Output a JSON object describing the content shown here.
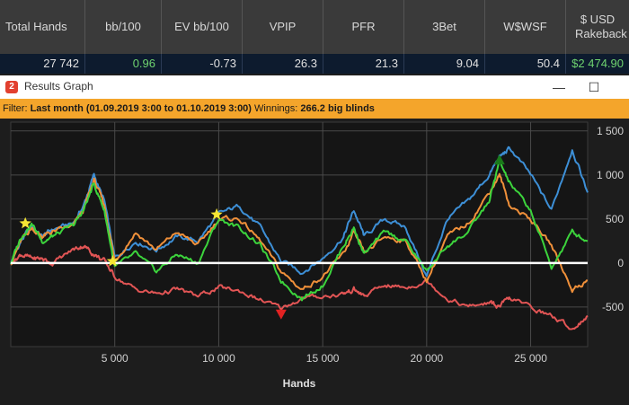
{
  "stats": {
    "headers": [
      "Total Hands",
      "bb/100",
      "EV bb/100",
      "VPIP",
      "PFR",
      "3Bet",
      "W$WSF",
      "$ USD Rakeback"
    ],
    "values": [
      "27 742",
      "0.96",
      "-0.73",
      "26.3",
      "21.3",
      "9.04",
      "50.4",
      "$2 474.90"
    ],
    "value_colors": [
      "#e0e0e0",
      "#6fd36f",
      "#e0e0e0",
      "#e0e0e0",
      "#e0e0e0",
      "#e0e0e0",
      "#e0e0e0",
      "#6fd36f"
    ]
  },
  "window": {
    "title": "Results Graph",
    "app_icon": "2",
    "minimize_icon": "—",
    "maximize_icon": "☐"
  },
  "filter": {
    "label": "Filter:",
    "value": "Last month (01.09.2019 3:00 to 01.10.2019 3:00)",
    "winnings_label": "Winnings:",
    "winnings_value": "266.2 big blinds"
  },
  "chart_data": {
    "type": "line",
    "xlabel": "Hands",
    "ylabel": "",
    "xlim": [
      0,
      27742
    ],
    "ylim": [
      -950,
      1600
    ],
    "x_ticks": [
      5000,
      10000,
      15000,
      20000,
      25000
    ],
    "x_tick_labels": [
      "5 000",
      "10 000",
      "15 000",
      "20 000",
      "25 000"
    ],
    "y_ticks": [
      1500,
      1000,
      500,
      0,
      -500
    ],
    "y_tick_labels": [
      "1 500",
      "1 000",
      "500",
      "0",
      "-500"
    ],
    "grid": true,
    "zero_line": true,
    "colors": {
      "blue": "#3d8fd6",
      "orange": "#f0903a",
      "green": "#3cd43c",
      "red": "#e25555"
    },
    "series": [
      {
        "color": "#3d8fd6",
        "x": [
          0,
          500,
          1000,
          1500,
          2000,
          3000,
          3500,
          4000,
          4500,
          5000,
          6000,
          7000,
          8000,
          9000,
          10000,
          11000,
          12000,
          13000,
          14000,
          15000,
          16000,
          16500,
          17000,
          18000,
          19000,
          20000,
          21000,
          22000,
          23000,
          23500,
          24000,
          25000,
          26000,
          27000,
          27742
        ],
        "y": [
          0,
          250,
          420,
          300,
          380,
          450,
          650,
          1000,
          700,
          50,
          250,
          150,
          300,
          250,
          550,
          650,
          400,
          20,
          -100,
          50,
          300,
          600,
          300,
          500,
          400,
          -150,
          500,
          700,
          1000,
          1200,
          1300,
          1000,
          600,
          1300,
          800
        ]
      },
      {
        "color": "#f0903a",
        "x": [
          0,
          500,
          1000,
          1500,
          2000,
          3000,
          3500,
          4000,
          4500,
          5000,
          6000,
          7000,
          8000,
          9000,
          10000,
          11000,
          12000,
          13000,
          14000,
          15000,
          16000,
          16500,
          17000,
          18000,
          19000,
          20000,
          21000,
          22000,
          23000,
          23500,
          24000,
          25000,
          26000,
          27000,
          27742
        ],
        "y": [
          0,
          250,
          400,
          300,
          350,
          420,
          600,
          950,
          650,
          20,
          350,
          150,
          350,
          200,
          500,
          500,
          250,
          -100,
          -300,
          -150,
          100,
          350,
          100,
          300,
          250,
          -200,
          300,
          450,
          800,
          1000,
          650,
          500,
          200,
          -300,
          -200
        ]
      },
      {
        "color": "#3cd43c",
        "x": [
          0,
          500,
          1000,
          1500,
          2000,
          3000,
          3500,
          4000,
          4500,
          5000,
          6000,
          7000,
          8000,
          9000,
          10000,
          11000,
          12000,
          13000,
          14000,
          15000,
          16000,
          16500,
          17000,
          18000,
          19000,
          20000,
          21000,
          22000,
          23000,
          23500,
          24000,
          25000,
          26000,
          27000,
          27742
        ],
        "y": [
          0,
          300,
          450,
          250,
          300,
          420,
          600,
          900,
          600,
          -50,
          100,
          -100,
          100,
          0,
          500,
          400,
          200,
          -200,
          -400,
          -250,
          200,
          400,
          100,
          350,
          250,
          -100,
          200,
          350,
          700,
          1150,
          900,
          600,
          -50,
          350,
          250
        ]
      },
      {
        "color": "#e25555",
        "x": [
          0,
          500,
          1000,
          1500,
          2000,
          3000,
          3500,
          4000,
          4500,
          5000,
          6000,
          7000,
          8000,
          9000,
          10000,
          11000,
          12000,
          13000,
          14000,
          15000,
          16000,
          16500,
          17000,
          18000,
          19000,
          20000,
          21000,
          22000,
          23000,
          23500,
          24000,
          25000,
          26000,
          27000,
          27742
        ],
        "y": [
          0,
          100,
          50,
          50,
          0,
          150,
          200,
          100,
          20,
          -150,
          -300,
          -350,
          -300,
          -380,
          -280,
          -320,
          -420,
          -520,
          -400,
          -380,
          -350,
          -300,
          -380,
          -250,
          -280,
          -200,
          -400,
          -500,
          -450,
          -500,
          -400,
          -500,
          -600,
          -750,
          -600
        ]
      }
    ],
    "markers": [
      {
        "shape": "star",
        "color": "#f5e634",
        "x": 700,
        "y": 450
      },
      {
        "shape": "star",
        "color": "#f5e634",
        "x": 4900,
        "y": 20
      },
      {
        "shape": "star",
        "color": "#f5e634",
        "x": 9900,
        "y": 550
      },
      {
        "shape": "down-triangle",
        "color": "#e22222",
        "x": 13000,
        "y": -580
      },
      {
        "shape": "up-triangle",
        "color": "#1a7a1a",
        "x": 23500,
        "y": 1170
      }
    ]
  }
}
